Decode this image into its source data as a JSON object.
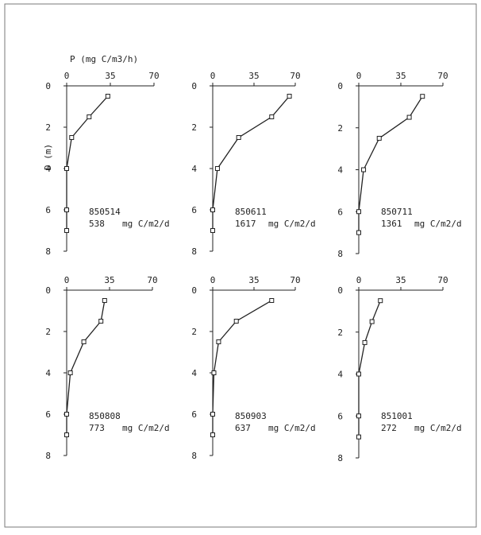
{
  "figure": {
    "xlabel": "P (mg C/m3/h)",
    "ylabel": "D (m)",
    "x_ticks": [
      "0",
      "35",
      "70"
    ],
    "y_ticks": [
      "0",
      "2",
      "4",
      "6",
      "8"
    ],
    "colors": {
      "line": "#222222",
      "border": "#7a7a7a",
      "background": "#ffffff"
    }
  },
  "chart_data": [
    {
      "type": "line",
      "id": "850514",
      "value_text": "538",
      "unit": "mg C/m2/d",
      "xlim": [
        0,
        70
      ],
      "ylim": [
        0,
        8
      ],
      "y_inverted": true,
      "x": [
        33,
        18,
        4,
        0,
        0,
        0
      ],
      "y": [
        0.5,
        1.5,
        2.5,
        4.0,
        6.0,
        7.0
      ]
    },
    {
      "type": "line",
      "id": "850611",
      "value_text": "1617",
      "unit": "mg C/m2/d",
      "xlim": [
        0,
        70
      ],
      "ylim": [
        0,
        8
      ],
      "y_inverted": true,
      "x": [
        65,
        50,
        22,
        4,
        0,
        0
      ],
      "y": [
        0.5,
        1.5,
        2.5,
        4.0,
        6.0,
        7.0
      ]
    },
    {
      "type": "line",
      "id": "850711",
      "value_text": "1361",
      "unit": "mg C/m2/d",
      "xlim": [
        0,
        70
      ],
      "ylim": [
        0,
        8
      ],
      "y_inverted": true,
      "x": [
        53,
        42,
        17,
        4,
        0,
        0
      ],
      "y": [
        0.5,
        1.5,
        2.5,
        4.0,
        6.0,
        7.0
      ]
    },
    {
      "type": "line",
      "id": "850808",
      "value_text": "773",
      "unit": "mg C/m2/d",
      "xlim": [
        0,
        70
      ],
      "ylim": [
        0,
        8
      ],
      "y_inverted": true,
      "x": [
        31,
        28,
        14,
        3,
        0,
        0
      ],
      "y": [
        0.5,
        1.5,
        2.5,
        4.0,
        6.0,
        7.0
      ]
    },
    {
      "type": "line",
      "id": "850903",
      "value_text": "637",
      "unit": "mg C/m2/d",
      "xlim": [
        0,
        70
      ],
      "ylim": [
        0,
        8
      ],
      "y_inverted": true,
      "x": [
        50,
        20,
        5,
        1,
        0,
        0
      ],
      "y": [
        0.5,
        1.5,
        2.5,
        4.0,
        6.0,
        7.0
      ]
    },
    {
      "type": "line",
      "id": "851001",
      "value_text": "272",
      "unit": "mg C/m2/d",
      "xlim": [
        0,
        70
      ],
      "ylim": [
        0,
        8
      ],
      "y_inverted": true,
      "x": [
        18,
        11,
        5,
        0,
        0,
        0
      ],
      "y": [
        0.5,
        1.5,
        2.5,
        4.0,
        6.0,
        7.0
      ]
    }
  ]
}
